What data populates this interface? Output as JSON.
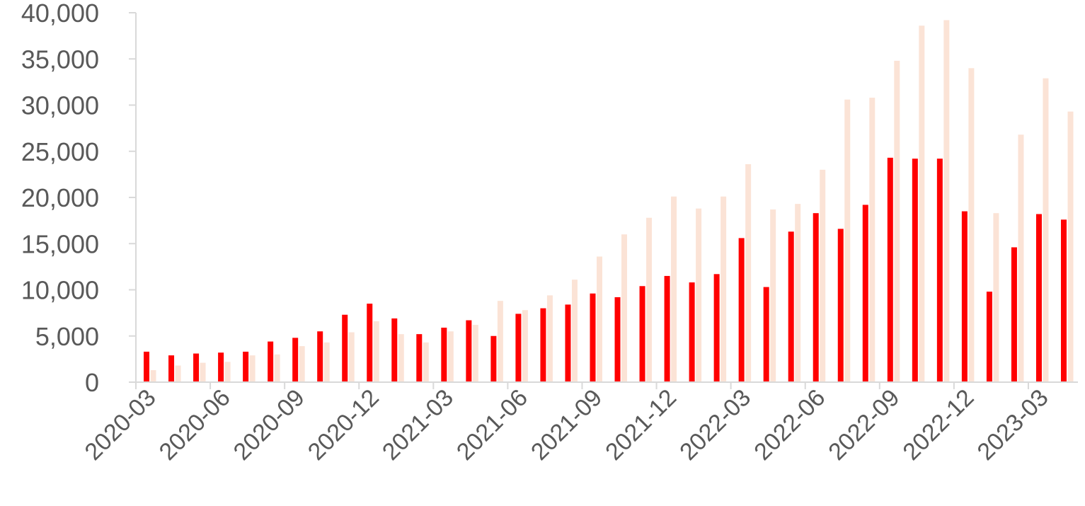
{
  "chart_data": {
    "type": "bar",
    "categories": [
      "2020-03",
      "2020-04",
      "2020-05",
      "2020-06",
      "2020-07",
      "2020-08",
      "2020-09",
      "2020-10",
      "2020-11",
      "2020-12",
      "2021-01",
      "2021-02",
      "2021-03",
      "2021-04",
      "2021-05",
      "2021-06",
      "2021-07",
      "2021-08",
      "2021-09",
      "2021-10",
      "2021-11",
      "2021-12",
      "2022-01",
      "2022-02",
      "2022-03",
      "2022-04",
      "2022-05",
      "2022-06",
      "2022-07",
      "2022-08",
      "2022-09",
      "2022-10",
      "2022-11",
      "2022-12",
      "2023-01",
      "2023-02",
      "2023-03",
      "2023-04"
    ],
    "x_tick_labels": [
      "2020-03",
      "2020-06",
      "2020-09",
      "2020-12",
      "2021-03",
      "2021-06",
      "2021-09",
      "2021-12",
      "2022-03",
      "2022-06",
      "2022-09",
      "2022-12",
      "2023-03"
    ],
    "y_tick_labels": [
      "0",
      "5,000",
      "10,000",
      "15,000",
      "20,000",
      "25,000",
      "30,000",
      "35,000",
      "40,000"
    ],
    "ylim": [
      0,
      40000
    ],
    "grid": false,
    "legend": "none",
    "title": "",
    "xlabel": "",
    "ylabel": "",
    "series": [
      {
        "color": "#ff0000",
        "values": [
          3300,
          2900,
          3100,
          3200,
          3300,
          4400,
          4800,
          5500,
          7300,
          8500,
          6900,
          5200,
          5900,
          6700,
          5000,
          7400,
          8000,
          8400,
          9600,
          9200,
          10400,
          11500,
          10800,
          11700,
          15600,
          10300,
          16300,
          18300,
          16600,
          19200,
          24300,
          24200,
          24200,
          18500,
          9800,
          14600,
          18200,
          17600
        ]
      },
      {
        "color": "#fbe3d6",
        "values": [
          1300,
          1800,
          2100,
          2200,
          2900,
          3000,
          3900,
          4300,
          5400,
          6600,
          5200,
          4300,
          5500,
          6200,
          8800,
          7800,
          9400,
          11100,
          13600,
          16000,
          17800,
          20100,
          18800,
          20100,
          23600,
          18700,
          19300,
          23000,
          30600,
          30800,
          34800,
          38600,
          39200,
          34000,
          18300,
          26800,
          32900,
          29300
        ]
      }
    ],
    "colors": {
      "axis": "#d9d9d9",
      "tick_text": "#595959"
    }
  }
}
